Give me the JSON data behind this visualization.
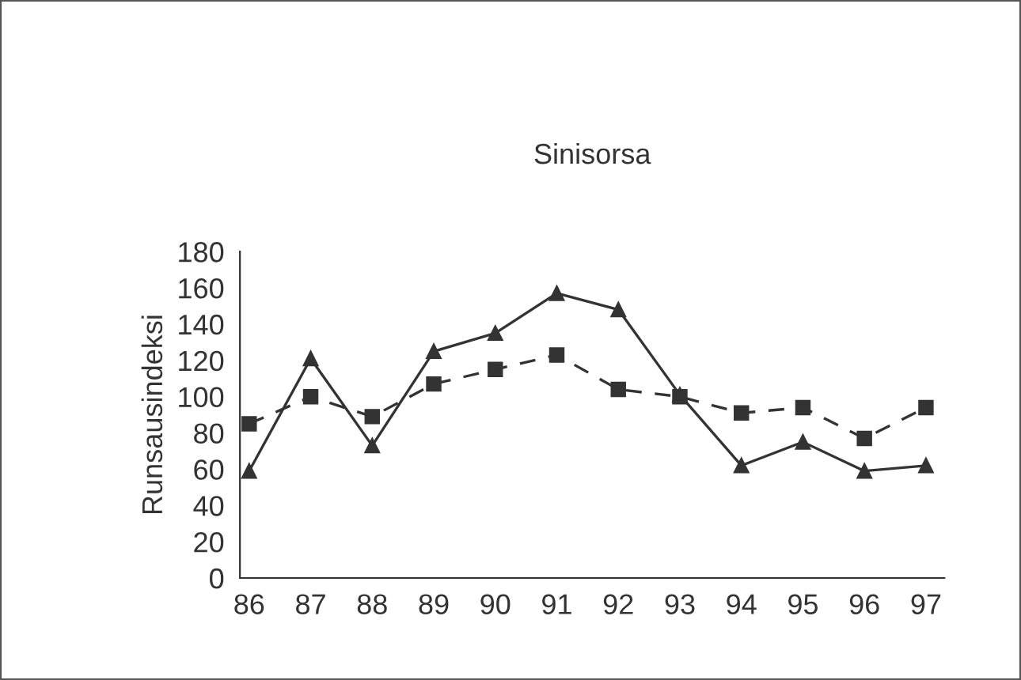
{
  "chart_data": {
    "type": "line",
    "title": "Sinisorsa",
    "ylabel": "Runsausindeksi",
    "categories": [
      "86",
      "87",
      "88",
      "89",
      "90",
      "91",
      "92",
      "93",
      "94",
      "95",
      "96",
      "97"
    ],
    "series": [
      {
        "color": "#333333",
        "marker": "triangle",
        "line_style": "solid",
        "values": [
          59,
          121,
          73,
          125,
          135,
          157,
          148,
          101,
          62,
          75,
          59,
          62
        ]
      },
      {
        "color": "#333333",
        "marker": "square",
        "line_style": "dashed",
        "values": [
          85,
          100,
          89,
          107,
          115,
          123,
          104,
          100,
          91,
          94,
          77,
          94
        ]
      }
    ],
    "ylim": [
      0,
      180
    ],
    "yticks": [
      0,
      20,
      40,
      60,
      80,
      100,
      120,
      140,
      160,
      180
    ],
    "grid": false,
    "legend": false
  }
}
